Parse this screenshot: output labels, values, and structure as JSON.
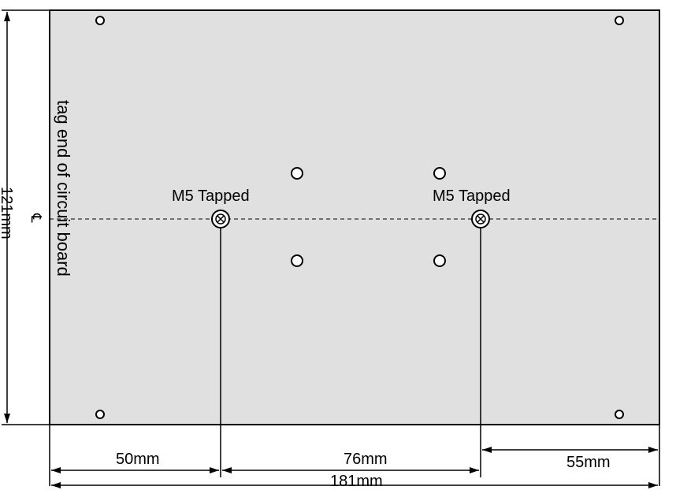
{
  "board": {
    "fill_color": "#e0e0e0",
    "line_color": "#000000",
    "edge_label": "tag end of circuit board",
    "centerline_symbol": "℄"
  },
  "holes": {
    "tapped_label_left": "M5 Tapped",
    "tapped_label_right": "M5 Tapped"
  },
  "dimensions": {
    "height": "121mm",
    "width": "181mm",
    "left_to_first_tap": "50mm",
    "between_taps": "76mm",
    "second_tap_to_right": "55mm"
  }
}
